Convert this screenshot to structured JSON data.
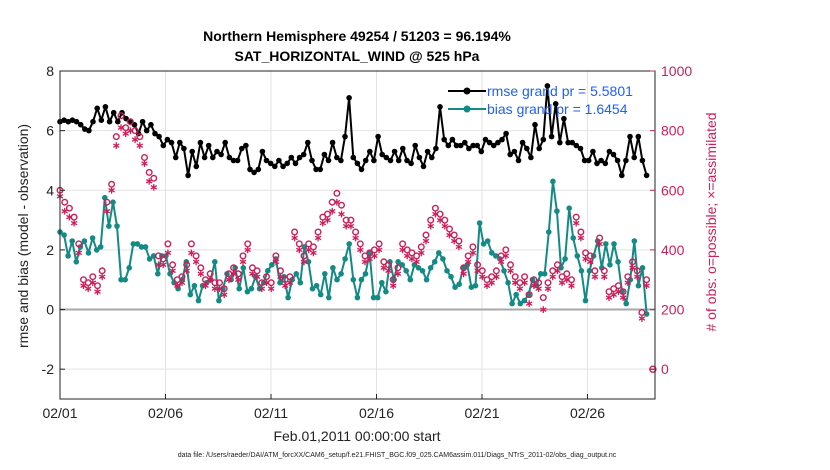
{
  "chart_data": {
    "type": "line",
    "title": "Northern Hemisphere 49254 / 51203 = 96.194%",
    "subtitle": "SAT_HORIZONTAL_WIND @ 525 hPa",
    "xlabel": "Feb.01,2011 00:00:00 start",
    "ylabel_left": "rmse and bias (model - observation)",
    "ylabel_right": "# of obs: o=possible; ×=assimilated",
    "x_ticks": [
      "02/01",
      "02/06",
      "02/11",
      "02/16",
      "02/21",
      "02/26"
    ],
    "y_left_ticks": [
      "-2",
      "0",
      "2",
      "4",
      "6",
      "8"
    ],
    "y_right_ticks": [
      "0",
      "200",
      "400",
      "600",
      "800",
      "1000"
    ],
    "ylim_left": [
      -3,
      8
    ],
    "ylim_right": [
      -100,
      1000
    ],
    "xlim_days": [
      0,
      28.2
    ],
    "grid": true,
    "legend_position": "top-right",
    "footer": "data file: /Users/raeder/DAI/ATM_forcXX/CAM6_setup/f.e21.FHIST_BGC.f09_025.CAM6assim.011/Diags_NTrS_2011-02/obs_diag_output.nc",
    "series": [
      {
        "name": "rmse grand pr = 5.5801",
        "color": "#000000",
        "marker": "dot",
        "axis": "left",
        "values": [
          6.3,
          6.35,
          6.3,
          6.35,
          6.3,
          6.2,
          6.05,
          6.0,
          6.3,
          6.75,
          6.35,
          6.8,
          6.3,
          6.6,
          6.3,
          6.6,
          6.4,
          6.3,
          6.2,
          5.9,
          6.3,
          6.0,
          6.2,
          5.9,
          5.8,
          5.5,
          5.7,
          5.6,
          5.1,
          5.6,
          5.4,
          4.5,
          5.3,
          4.8,
          5.6,
          5.1,
          5.5,
          5.1,
          5.3,
          5.2,
          5.6,
          5.1,
          5.0,
          5.0,
          5.4,
          5.5,
          4.7,
          4.6,
          4.7,
          5.3,
          5.0,
          4.9,
          4.8,
          5.0,
          4.8,
          4.9,
          5.1,
          4.9,
          5.1,
          5.2,
          5.6,
          5.0,
          4.7,
          4.7,
          5.2,
          5.0,
          5.6,
          5.1,
          5.0,
          5.8,
          7.1,
          5.1,
          4.9,
          4.7,
          5.0,
          5.3,
          5.0,
          5.8,
          5.2,
          5.1,
          5.0,
          5.3,
          5.0,
          5.4,
          5.0,
          4.9,
          5.5,
          5.1,
          4.8,
          5.3,
          5.1,
          5.4,
          6.8,
          5.7,
          5.5,
          5.7,
          5.5,
          5.5,
          5.6,
          5.4,
          5.5,
          5.5,
          5.3,
          5.7,
          5.6,
          5.5,
          5.6,
          5.7,
          5.9,
          5.2,
          5.3,
          5.0,
          5.6,
          5.4,
          5.1,
          6.2,
          5.4,
          5.7,
          7.5,
          5.8,
          6.9,
          5.6,
          6.4,
          5.6,
          5.6,
          5.5,
          5.4,
          5.0,
          5.0,
          5.3,
          4.9,
          5.0,
          4.9,
          5.3,
          5.2,
          5.0,
          4.5,
          5.0,
          5.8,
          5.1,
          5.8,
          5.0,
          4.5
        ]
      },
      {
        "name": "bias grand pr = 1.6454",
        "color": "#138a85",
        "marker": "dot",
        "axis": "left",
        "values": [
          2.6,
          2.5,
          1.8,
          2.3,
          1.6,
          2.1,
          2.3,
          1.9,
          2.4,
          2.0,
          2.1,
          3.75,
          2.8,
          3.6,
          2.8,
          1.0,
          1.0,
          1.4,
          2.2,
          2.2,
          2.1,
          2.1,
          1.7,
          1.8,
          1.2,
          1.8,
          1.8,
          1.2,
          0.9,
          0.7,
          1.0,
          1.6,
          0.5,
          0.8,
          0.3,
          0.8,
          0.9,
          1.0,
          1.6,
          0.3,
          0.7,
          1.2,
          1.0,
          1.4,
          0.7,
          1.4,
          0.6,
          0.7,
          1.1,
          0.7,
          0.9,
          1.3,
          1.5,
          1.7,
          0.9,
          1.1,
          0.4,
          1.0,
          1.2,
          0.9,
          2.1,
          1.6,
          0.7,
          0.8,
          0.5,
          1.2,
          0.4,
          1.4,
          1.0,
          1.2,
          1.7,
          2.2,
          1.0,
          0.4,
          1.0,
          1.2,
          1.9,
          0.4,
          0.4,
          0.9,
          0.6,
          1.6,
          1.0,
          1.6,
          1.5,
          1.3,
          1.0,
          1.5,
          1.4,
          1.3,
          1.0,
          1.4,
          1.6,
          1.9,
          1.7,
          1.3,
          1.1,
          0.75,
          0.85,
          1.4,
          1.5,
          0.75,
          0.8,
          2.9,
          2.2,
          2.3,
          1.9,
          1.8,
          1.7,
          1.3,
          0.9,
          0.2,
          0.5,
          0.2,
          0.3,
          0.5,
          1.0,
          0.8,
          1.2,
          1.2,
          2.6,
          4.3,
          3.3,
          1.4,
          1.7,
          3.4,
          2.4,
          1.8,
          1.3,
          0.3,
          1.3,
          1.8,
          2.3,
          1.4,
          2.2,
          1.5,
          2.2,
          1.6,
          0.6,
          0.2,
          1.0,
          2.3,
          0.8,
          1.4,
          -0.15
        ]
      },
      {
        "name": "obs possible (o)",
        "color": "#cc1f5a",
        "marker": "circle",
        "axis": "right",
        "values": [
          600,
          560,
          540,
          510,
          420,
          300,
          290,
          310,
          280,
          330,
          560,
          620,
          780,
          850,
          810,
          830,
          800,
          780,
          710,
          660,
          640,
          380,
          370,
          420,
          350,
          300,
          310,
          350,
          420,
          380,
          340,
          300,
          320,
          290,
          290,
          270,
          320,
          340,
          320,
          380,
          420,
          340,
          330,
          290,
          310,
          290,
          380,
          330,
          300,
          310,
          460,
          420,
          380,
          420,
          410,
          460,
          510,
          520,
          560,
          590,
          550,
          500,
          500,
          460,
          420,
          380,
          390,
          400,
          420,
          360,
          350,
          300,
          340,
          420,
          400,
          390,
          380,
          410,
          450,
          500,
          540,
          520,
          500,
          470,
          450,
          430,
          340,
          380,
          410,
          350,
          330,
          300,
          310,
          330,
          380,
          400,
          350,
          310,
          290,
          310,
          250,
          300,
          290,
          240,
          290,
          330,
          350,
          310,
          320,
          300,
          510,
          460,
          390,
          380,
          330,
          440,
          330,
          260,
          270,
          280,
          260,
          310,
          360,
          330,
          190,
          300
        ]
      },
      {
        "name": "obs assimilated (×)",
        "color": "#cc1f5a",
        "marker": "asterisk",
        "axis": "right",
        "values": [
          590,
          540,
          520,
          500,
          400,
          290,
          280,
          300,
          270,
          320,
          540,
          610,
          760,
          820,
          800,
          810,
          780,
          760,
          700,
          640,
          620,
          360,
          360,
          400,
          340,
          290,
          300,
          340,
          400,
          370,
          330,
          290,
          310,
          280,
          280,
          260,
          310,
          330,
          310,
          370,
          410,
          330,
          320,
          280,
          300,
          280,
          370,
          320,
          290,
          300,
          450,
          410,
          370,
          410,
          400,
          450,
          500,
          510,
          540,
          570,
          530,
          490,
          490,
          450,
          410,
          370,
          380,
          390,
          410,
          350,
          340,
          290,
          330,
          410,
          390,
          380,
          370,
          400,
          440,
          490,
          530,
          510,
          490,
          460,
          440,
          420,
          330,
          370,
          400,
          340,
          320,
          290,
          300,
          320,
          370,
          390,
          340,
          300,
          280,
          300,
          230,
          290,
          280,
          210,
          280,
          320,
          340,
          300,
          310,
          290,
          500,
          450,
          380,
          370,
          320,
          430,
          320,
          250,
          260,
          270,
          250,
          300,
          350,
          320,
          180,
          290
        ]
      }
    ],
    "extra_points": [
      {
        "series": "obs possible (o)",
        "day": 28.1,
        "value": 0
      }
    ]
  }
}
